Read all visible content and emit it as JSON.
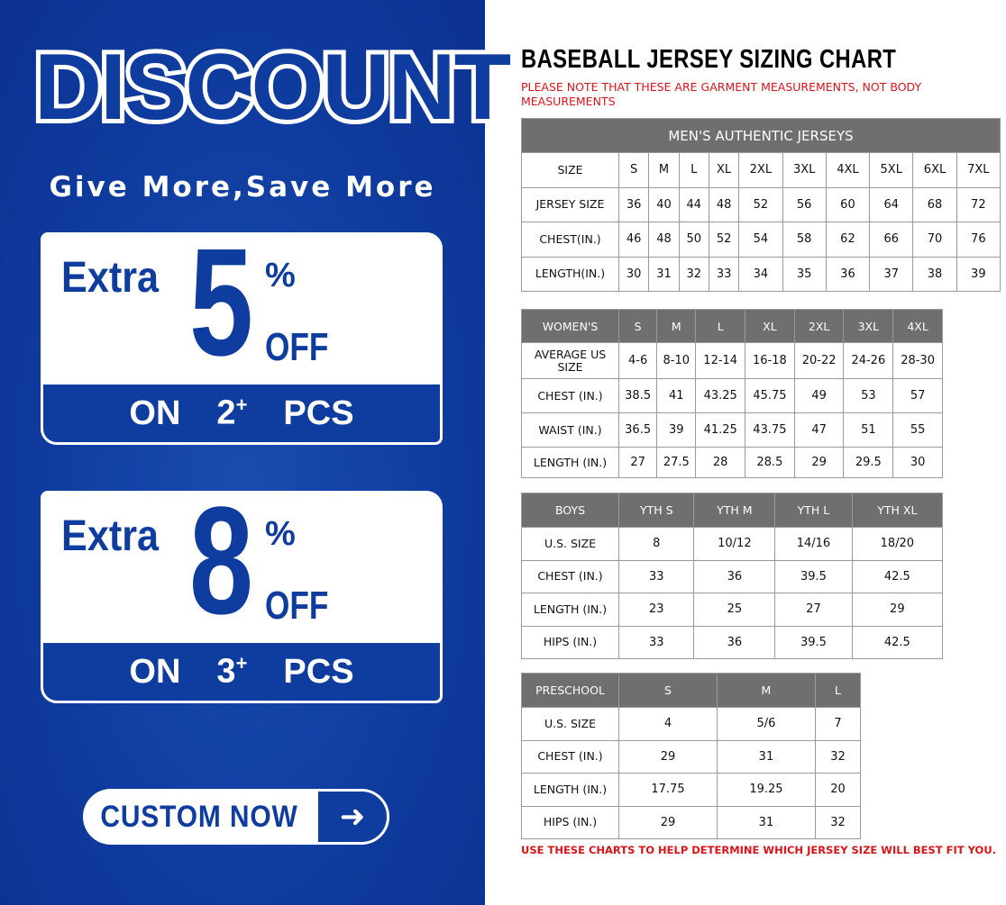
{
  "promo": {
    "headline": "DISCOUNT",
    "slogan": "Give More,Save More",
    "offers": [
      {
        "prefix": "Extra",
        "percent": "5",
        "percent_sign": "%",
        "off": "OFF",
        "on": "ON",
        "qty": "2",
        "qty_sup": "+",
        "pcs": "PCS"
      },
      {
        "prefix": "Extra",
        "percent": "8",
        "percent_sign": "%",
        "off": "OFF",
        "on": "ON",
        "qty": "3",
        "qty_sup": "+",
        "pcs": "PCS"
      }
    ],
    "cta_label": "CUSTOM NOW",
    "cta_icon": "arrow-right-icon",
    "colors": {
      "brand_blue": "#0f3c9f",
      "note_red": "#d8141b",
      "header_gray": "#6f6f6f"
    }
  },
  "chart": {
    "title": "BASEBALL JERSEY SIZING CHART",
    "note": "PLEASE NOTE THAT THESE ARE GARMENT MEASUREMENTS, NOT BODY MEASUREMENTS",
    "footer": "USE THESE CHARTS TO HELP DETERMINE WHICH JERSEY SIZE WILL BEST FIT YOU.",
    "tables": [
      {
        "caption": "MEN'S AUTHENTIC JERSEYS",
        "header": null,
        "rows": [
          [
            "SIZE",
            "S",
            "M",
            "L",
            "XL",
            "2XL",
            "3XL",
            "4XL",
            "5XL",
            "6XL",
            "7XL"
          ],
          [
            "JERSEY SIZE",
            "36",
            "40",
            "44",
            "48",
            "52",
            "56",
            "60",
            "64",
            "68",
            "72"
          ],
          [
            "CHEST(IN.)",
            "46",
            "48",
            "50",
            "52",
            "54",
            "58",
            "62",
            "66",
            "70",
            "76"
          ],
          [
            "LENGTH(IN.)",
            "30",
            "31",
            "32",
            "33",
            "34",
            "35",
            "36",
            "37",
            "38",
            "39"
          ]
        ]
      },
      {
        "caption": null,
        "header": [
          "WOMEN'S",
          "S",
          "M",
          "L",
          "XL",
          "2XL",
          "3XL",
          "4XL"
        ],
        "rows": [
          [
            "AVERAGE US SIZE",
            "4-6",
            "8-10",
            "12-14",
            "16-18",
            "20-22",
            "24-26",
            "28-30"
          ],
          [
            "CHEST (IN.)",
            "38.5",
            "41",
            "43.25",
            "45.75",
            "49",
            "53",
            "57"
          ],
          [
            "WAIST (IN.)",
            "36.5",
            "39",
            "41.25",
            "43.75",
            "47",
            "51",
            "55"
          ],
          [
            "LENGTH (IN.)",
            "27",
            "27.5",
            "28",
            "28.5",
            "29",
            "29.5",
            "30"
          ]
        ]
      },
      {
        "caption": null,
        "header": [
          "BOYS",
          "YTH S",
          "YTH M",
          "YTH L",
          "YTH XL"
        ],
        "rows": [
          [
            "U.S. SIZE",
            "8",
            "10/12",
            "14/16",
            "18/20"
          ],
          [
            "CHEST (IN.)",
            "33",
            "36",
            "39.5",
            "42.5"
          ],
          [
            "LENGTH (IN.)",
            "23",
            "25",
            "27",
            "29"
          ],
          [
            "HIPS (IN.)",
            "33",
            "36",
            "39.5",
            "42.5"
          ]
        ]
      },
      {
        "caption": null,
        "header": [
          "PRESCHOOL",
          "S",
          "M",
          "L"
        ],
        "rows": [
          [
            "U.S. SIZE",
            "4",
            "5/6",
            "7"
          ],
          [
            "CHEST (IN.)",
            "29",
            "31",
            "32"
          ],
          [
            "LENGTH (IN.)",
            "17.75",
            "19.25",
            "20"
          ],
          [
            "HIPS (IN.)",
            "29",
            "31",
            "32"
          ]
        ]
      }
    ]
  }
}
